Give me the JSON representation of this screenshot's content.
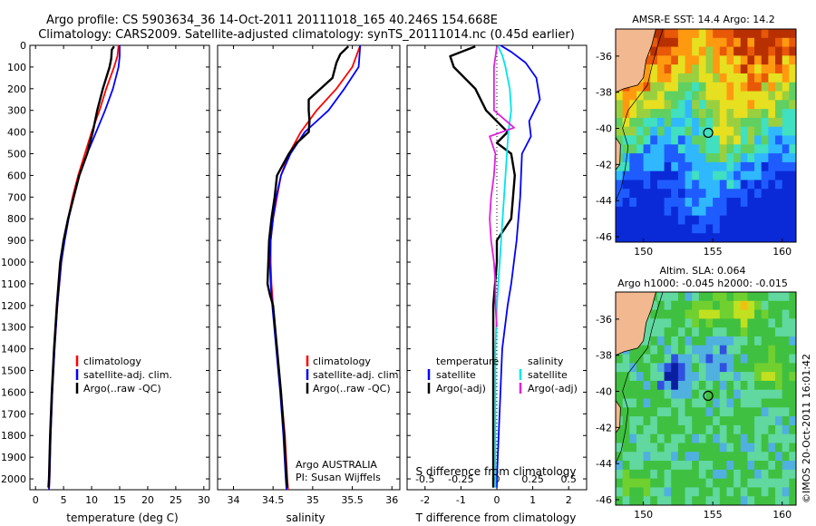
{
  "header": {
    "line1": "Argo profile: CS 5903634_36 14-Oct-2011 20111018_165 40.246S 154.668E",
    "line2": "Climatology: CARS2009. Satellite-adjusted climatology: synTS_20111014.nc (0.45d earlier)"
  },
  "colors": {
    "climatology": "#ff0000",
    "satellite": "#0000ff",
    "argo": "#000000",
    "salinity_satellite": "#00e5e5",
    "salinity_argo": "#e020e0",
    "land": "#f2b890"
  },
  "chart_data": [
    {
      "type": "line",
      "id": "temperature-profile",
      "xlabel": "temperature (deg C)",
      "ylabel": "",
      "xlim": [
        -1,
        31
      ],
      "ylim": [
        0,
        2050
      ],
      "y_inverted": true,
      "xticks": [
        0,
        5,
        10,
        15,
        20,
        25,
        30
      ],
      "yticks": [
        0,
        100,
        200,
        300,
        400,
        500,
        600,
        700,
        800,
        900,
        1000,
        1100,
        1200,
        1300,
        1400,
        1500,
        1600,
        1700,
        1800,
        1900,
        2000
      ],
      "legend": [
        "climatology",
        "satellite-adj. clim.",
        "Argo(..raw -QC)"
      ],
      "series": [
        {
          "name": "climatology",
          "color": "#ff0000",
          "depth": [
            0,
            50,
            100,
            200,
            300,
            400,
            500,
            600,
            700,
            800,
            900,
            1000,
            1200,
            1400,
            1600,
            1800,
            2000,
            2050
          ],
          "values": [
            14.8,
            14.6,
            14.0,
            12.6,
            11.4,
            10.0,
            8.8,
            7.6,
            6.6,
            5.8,
            5.1,
            4.6,
            3.9,
            3.4,
            3.0,
            2.7,
            2.5,
            2.4
          ]
        },
        {
          "name": "satellite-adj. clim.",
          "color": "#0000ff",
          "depth": [
            0,
            50,
            100,
            200,
            300,
            400,
            500,
            600,
            700,
            800,
            900,
            1000,
            1200,
            1400,
            1600,
            1800,
            2000,
            2050
          ],
          "values": [
            15.0,
            15.0,
            14.8,
            13.8,
            12.4,
            10.8,
            9.2,
            7.8,
            6.8,
            5.9,
            5.2,
            4.6,
            3.9,
            3.4,
            3.0,
            2.7,
            2.5,
            2.4
          ]
        },
        {
          "name": "Argo(..raw -QC)",
          "color": "#000000",
          "depth": [
            5,
            20,
            60,
            100,
            200,
            300,
            400,
            500,
            600,
            700,
            800,
            900,
            1000,
            1200,
            1400,
            1600,
            1800,
            2000,
            2040
          ],
          "values": [
            14.0,
            13.6,
            13.5,
            13.2,
            12.0,
            11.0,
            10.2,
            9.2,
            7.8,
            6.8,
            5.8,
            5.0,
            4.4,
            3.8,
            3.3,
            2.9,
            2.6,
            2.4,
            2.3
          ]
        }
      ]
    },
    {
      "type": "line",
      "id": "salinity-profile",
      "xlabel": "salinity",
      "xlim": [
        33.8,
        36.1
      ],
      "ylim": [
        0,
        2050
      ],
      "y_inverted": true,
      "xticks": [
        34,
        34.5,
        35,
        35.5,
        36
      ],
      "legend": [
        "climatology",
        "satellite-adj. clim.",
        "Argo(..raw -QC)"
      ],
      "annotation": [
        "Argo AUSTRALIA",
        "PI: Susan Wijffels"
      ],
      "series": [
        {
          "name": "climatology",
          "color": "#ff0000",
          "depth": [
            0,
            100,
            200,
            300,
            400,
            500,
            600,
            700,
            800,
            900,
            1000,
            1100,
            1200,
            1400,
            1600,
            1800,
            2000,
            2050
          ],
          "values": [
            35.6,
            35.5,
            35.3,
            35.05,
            34.85,
            34.7,
            34.6,
            34.55,
            34.5,
            34.47,
            34.47,
            34.48,
            34.5,
            34.55,
            34.6,
            34.65,
            34.68,
            34.69
          ]
        },
        {
          "name": "satellite-adj. clim.",
          "color": "#0000ff",
          "depth": [
            0,
            100,
            200,
            300,
            400,
            500,
            600,
            700,
            800,
            900,
            1000,
            1100,
            1200,
            1400,
            1600,
            1800,
            2000,
            2050
          ],
          "values": [
            35.6,
            35.58,
            35.4,
            35.2,
            34.9,
            34.72,
            34.6,
            34.54,
            34.5,
            34.47,
            34.46,
            34.47,
            34.49,
            34.54,
            34.59,
            34.63,
            34.66,
            34.67
          ]
        },
        {
          "name": "Argo(..raw -QC)",
          "color": "#000000",
          "depth": [
            5,
            40,
            80,
            150,
            250,
            300,
            350,
            400,
            450,
            500,
            600,
            700,
            800,
            900,
            1000,
            1100,
            1150,
            1200,
            1400,
            1600,
            1800,
            2000,
            2040
          ],
          "values": [
            35.45,
            35.35,
            35.3,
            35.25,
            34.95,
            34.95,
            34.96,
            34.95,
            34.8,
            34.7,
            34.55,
            34.52,
            34.48,
            34.45,
            34.44,
            34.43,
            34.46,
            34.5,
            34.55,
            34.6,
            34.64,
            34.67,
            34.68
          ]
        }
      ]
    },
    {
      "type": "line",
      "id": "difference-profile",
      "xlabel": "T difference from climatology",
      "top_axis_label": "S difference from climatology",
      "xlim": [
        -2.5,
        2.5
      ],
      "ylim": [
        0,
        2050
      ],
      "y_inverted": true,
      "xticks": [
        -2,
        -1,
        0,
        1,
        2
      ],
      "top_ticks": [
        "-0.5",
        "-0.25",
        "0",
        "0.25",
        "0.5"
      ],
      "legend": {
        "temperature": "temperature",
        "salinity": "salinity",
        "satellite": "satellite",
        "argo_adj": "Argo(-adj)"
      },
      "series": [
        {
          "name": "temperature satellite",
          "color": "#0000ff",
          "depth": [
            0,
            30,
            80,
            150,
            250,
            350,
            420,
            500,
            700,
            900,
            1100,
            1200,
            1400,
            1600,
            1800,
            2000,
            2040
          ],
          "values": [
            0.1,
            0.4,
            0.8,
            1.1,
            1.2,
            0.9,
            0.95,
            0.7,
            0.65,
            0.55,
            0.4,
            0.3,
            0.15,
            0.1,
            0.05,
            0.0,
            0.0
          ]
        },
        {
          "name": "temperature Argo(-adj)",
          "color": "#000000",
          "depth": [
            5,
            50,
            100,
            200,
            300,
            350,
            400,
            450,
            500,
            600,
            700,
            800,
            850,
            900,
            1000,
            1200,
            1400,
            1600,
            1800,
            2000,
            2040
          ],
          "values": [
            -0.6,
            -1.3,
            -1.2,
            -0.6,
            -0.3,
            0.0,
            0.3,
            0.0,
            0.4,
            0.5,
            0.45,
            0.4,
            0.2,
            0.0,
            0.0,
            -0.1,
            -0.1,
            -0.1,
            -0.1,
            -0.1,
            -0.1
          ]
        },
        {
          "name": "salinity satellite",
          "color": "#00e5e5",
          "depth": [
            5,
            50,
            100,
            200,
            300,
            400,
            500,
            600,
            700,
            800,
            900,
            1000,
            1200,
            1400,
            1600,
            1800,
            2000,
            2040
          ],
          "values": [
            0.01,
            0.04,
            0.06,
            0.09,
            0.1,
            0.08,
            0.07,
            0.06,
            0.05,
            0.04,
            0.03,
            0.02,
            0.0,
            -0.01,
            -0.01,
            -0.01,
            -0.01,
            -0.01
          ]
        },
        {
          "name": "salinity Argo(-adj)",
          "color": "#e020e0",
          "depth": [
            5,
            100,
            200,
            300,
            380,
            420,
            500,
            600,
            700,
            800,
            900,
            1000,
            1100,
            1200,
            1300
          ],
          "values": [
            0.0,
            -0.02,
            -0.02,
            -0.02,
            0.12,
            -0.05,
            -0.01,
            -0.02,
            -0.04,
            -0.05,
            -0.04,
            -0.02,
            -0.01,
            -0.01,
            0.0
          ]
        }
      ]
    },
    {
      "type": "heatmap",
      "id": "sst-map",
      "title": "AMSR-E SST: 14.4 Argo: 14.2",
      "xlim": [
        148,
        161
      ],
      "ylim": [
        -46.3,
        -34.5
      ],
      "xticks": [
        150,
        155,
        160
      ],
      "yticks": [
        -36,
        -38,
        -40,
        -42,
        -44,
        -46
      ],
      "marker": {
        "lon": 154.668,
        "lat": -40.246
      }
    },
    {
      "type": "heatmap",
      "id": "sla-map",
      "title": "Altim. SLA: 0.064",
      "subtitle": "Argo h1000: -0.045 h2000: -0.015",
      "xlim": [
        148,
        161
      ],
      "ylim": [
        -46.3,
        -34.5
      ],
      "xticks": [
        150,
        155,
        160
      ],
      "yticks": [
        -36,
        -38,
        -40,
        -42,
        -44,
        -46
      ],
      "marker": {
        "lon": 154.668,
        "lat": -40.246
      }
    }
  ],
  "credit": "©IMOS 20-Oct-2011 16:01:42"
}
